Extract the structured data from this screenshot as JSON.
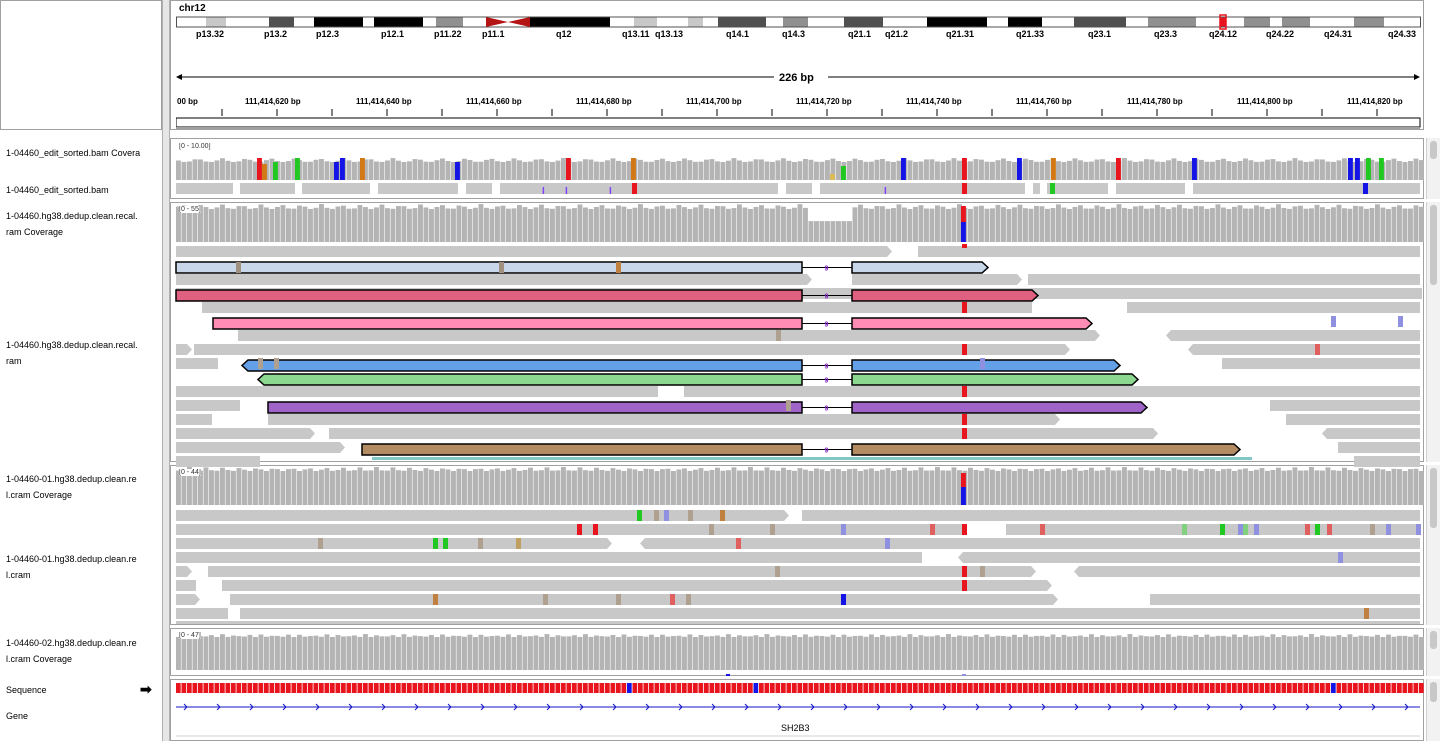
{
  "header": {
    "chromosome": "chr12",
    "span_label": "226 bp",
    "cytobands": [
      "p13.32",
      "p13.2",
      "p12.3",
      "p12.1",
      "p11.22",
      "p11.1",
      "q12",
      "q13.11",
      "q13.13",
      "q14.1",
      "q14.3",
      "q21.1",
      "q21.2",
      "q21.31",
      "q21.33",
      "q23.1",
      "q23.3",
      "q24.12",
      "q24.22",
      "q24.31",
      "q24.33"
    ],
    "ruler_ticks": [
      "00 bp",
      "111,414,620 bp",
      "111,414,640 bp",
      "111,414,660 bp",
      "111,414,680 bp",
      "111,414,700 bp",
      "111,414,720 bp",
      "111,414,740 bp",
      "111,414,760 bp",
      "111,414,780 bp",
      "111,414,800 bp",
      "111,414,820 bp"
    ]
  },
  "tracks": {
    "t1_coverage_label": "1-04460_edit_sorted.bam Covera",
    "t1_coverage_range": "[0 - 10.00]",
    "t1_reads_label": "1-04460_edit_sorted.bam",
    "t2_coverage_label_line1": "1-04460.hg38.dedup.clean.recal.",
    "t2_coverage_label_line2": "ram Coverage",
    "t2_coverage_range": "[0 - 55]",
    "t2_reads_label_line1": "1-04460.hg38.dedup.clean.recal.",
    "t2_reads_label_line2": "ram",
    "t3_coverage_label_line1": "1-04460-01.hg38.dedup.clean.re",
    "t3_coverage_label_line2": "l.cram Coverage",
    "t3_coverage_range": "[0 - 44]",
    "t3_reads_label_line1": "1-04460-01.hg38.dedup.clean.re",
    "t3_reads_label_line2": "l.cram",
    "t4_coverage_label_line1": "1-04460-02.hg38.dedup.clean.re",
    "t4_coverage_label_line2": "l.cram Coverage",
    "t4_coverage_range": "[0 - 47]",
    "sequence_label": "Sequence",
    "gene_label": "Gene",
    "gene_name": "SH2B3"
  },
  "colors": {
    "read_gray": "#c8c8c8",
    "mismatch_red": "#e8141e",
    "mismatch_blue": "#1414e6",
    "mismatch_green": "#22c822",
    "mismatch_orange": "#d27814",
    "pair_colors": [
      "#c8d8ea",
      "#e06080",
      "#ff8cb4",
      "#64a0e8",
      "#8cd890",
      "#a064c8",
      "#b48c64"
    ]
  },
  "split_read_gap_label": "9"
}
